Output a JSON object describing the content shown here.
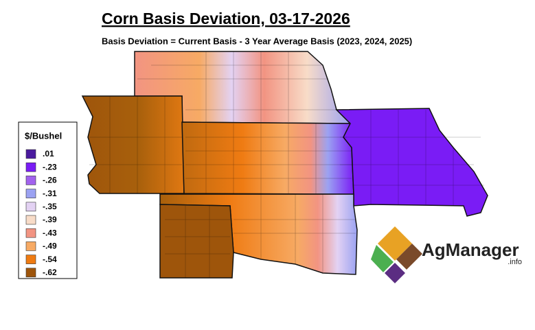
{
  "header": {
    "title": "Corn Basis Deviation, 03-17-2026",
    "subtitle": "Basis Deviation = Current Basis - 3 Year Average Basis (2023, 2024, 2025)"
  },
  "legend": {
    "title": "$/Bushel",
    "items": [
      {
        "label": ".01",
        "color": "#4a1a9e"
      },
      {
        "label": "-.23",
        "color": "#7a1cf5"
      },
      {
        "label": "-.26",
        "color": "#a262ee"
      },
      {
        "label": "-.31",
        "color": "#9ba2f2"
      },
      {
        "label": "-.35",
        "color": "#e3d2f3"
      },
      {
        "label": "-.39",
        "color": "#f8dcc8"
      },
      {
        "label": "-.43",
        "color": "#f29482"
      },
      {
        "label": "-.49",
        "color": "#f7aa64"
      },
      {
        "label": "-.54",
        "color": "#ef7b12"
      },
      {
        "label": "-.62",
        "color": "#9e550b"
      }
    ]
  },
  "logo": {
    "name": "AgManager",
    "suffix": ".info"
  }
}
